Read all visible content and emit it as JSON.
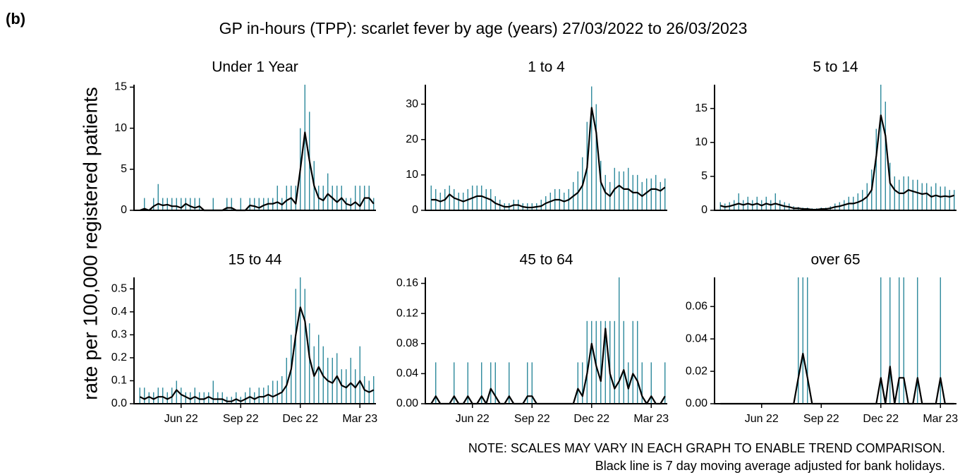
{
  "label": "(b)",
  "title": "GP in-hours (TPP): scarlet fever by age (years) 27/03/2022 to 26/03/2023",
  "ylabel": "rate per 100,000 registered patients",
  "notes": [
    "NOTE: SCALES MAY VARY IN EACH GRAPH TO ENABLE TREND COMPARISON.",
    "Black line is 7 day moving average adjusted for bank holidays."
  ],
  "chart_data": [
    {
      "type": "line",
      "title": "Under 1 Year",
      "ylim": [
        0,
        15.3
      ],
      "yticks": [
        0,
        5,
        10,
        15
      ],
      "categories": [
        null,
        null,
        null,
        null,
        null,
        null,
        null,
        null,
        null,
        null,
        null,
        null,
        null,
        null,
        null,
        null,
        null,
        null,
        null,
        null,
        null,
        null,
        null,
        null,
        null,
        null,
        null,
        null,
        null,
        null,
        null,
        null,
        null,
        null,
        null,
        null,
        null,
        null,
        null,
        null,
        null,
        null,
        null,
        null,
        null,
        null,
        null,
        null,
        null,
        null,
        null,
        null
      ],
      "series": [
        {
          "type": "bar",
          "color": "#1b7f93",
          "values": [
            0,
            1.5,
            0,
            1.5,
            3.2,
            1.5,
            1.5,
            1.5,
            1.5,
            1.5,
            1.5,
            1.5,
            1.5,
            1.5,
            0,
            0,
            1.5,
            0,
            0,
            1.5,
            1.5,
            0,
            1.5,
            0,
            1.5,
            1.5,
            1.5,
            1.5,
            1.5,
            1.5,
            3,
            1.5,
            3,
            3,
            3,
            10,
            15.3,
            12,
            6,
            3,
            3,
            4.5,
            3,
            3,
            3,
            1.5,
            1.5,
            3,
            3,
            3,
            3,
            1.5
          ]
        },
        {
          "type": "line",
          "color": "#000000",
          "values": [
            0,
            0.2,
            0,
            0.5,
            0.8,
            0.6,
            0.7,
            0.5,
            0.5,
            0.3,
            0.8,
            0.5,
            0.3,
            0.5,
            0,
            0,
            0,
            0,
            0,
            0.3,
            0.3,
            0,
            0,
            0,
            0.6,
            0.5,
            0.3,
            0.6,
            0.8,
            0.8,
            1.0,
            0.7,
            1.2,
            1.5,
            0.8,
            5,
            9.5,
            6,
            3,
            1.5,
            1.2,
            2.0,
            1.5,
            1.0,
            1.5,
            0.8,
            0.6,
            1.0,
            0.5,
            1.5,
            1.5,
            0.8
          ]
        }
      ]
    },
    {
      "type": "line",
      "title": "1 to 4",
      "ylim": [
        0,
        35.5
      ],
      "yticks": [
        0,
        10,
        20,
        30
      ],
      "categories": [
        null,
        null,
        null,
        null,
        null,
        null,
        null,
        null,
        null,
        null,
        null,
        null,
        null,
        null,
        null,
        null,
        null,
        null,
        null,
        null,
        null,
        null,
        null,
        null,
        null,
        null,
        null,
        null,
        null,
        null,
        null,
        null,
        null,
        null,
        null,
        null,
        null,
        null,
        null,
        null,
        null,
        null,
        null,
        null,
        null,
        null,
        null,
        null,
        null,
        null,
        null,
        null
      ],
      "series": [
        {
          "type": "bar",
          "color": "#1b7f93",
          "values": [
            7,
            6,
            5,
            6,
            7,
            6,
            5,
            5,
            6,
            7,
            7,
            7,
            6,
            6,
            4,
            3,
            2,
            2,
            3,
            3,
            2,
            2,
            2,
            2,
            3,
            4,
            5,
            6,
            6,
            5,
            6,
            8,
            11,
            15,
            25,
            35,
            30,
            14,
            10,
            8,
            12,
            11,
            11,
            12,
            10,
            10,
            8,
            9,
            9,
            10,
            8,
            9
          ]
        },
        {
          "type": "line",
          "color": "#000000",
          "values": [
            3,
            3,
            2.5,
            3,
            4.5,
            3.5,
            3,
            2.5,
            3,
            3.5,
            4,
            4,
            3.5,
            3,
            2,
            1.5,
            1,
            1,
            1.5,
            1.5,
            1,
            0.8,
            0.8,
            1,
            1.2,
            2,
            2.5,
            3,
            3,
            2.5,
            3,
            4,
            5,
            7,
            12,
            29,
            22,
            8,
            5,
            4,
            6,
            7,
            6,
            6,
            5,
            5,
            4,
            5,
            6,
            6,
            5.5,
            6.5
          ]
        }
      ]
    },
    {
      "type": "line",
      "title": "5 to 14",
      "ylim": [
        0,
        18.5
      ],
      "yticks": [
        0,
        5,
        10,
        15
      ],
      "categories": [
        null,
        null,
        null,
        null,
        null,
        null,
        null,
        null,
        null,
        null,
        null,
        null,
        null,
        null,
        null,
        null,
        null,
        null,
        null,
        null,
        null,
        null,
        null,
        null,
        null,
        null,
        null,
        null,
        null,
        null,
        null,
        null,
        null,
        null,
        null,
        null,
        null,
        null,
        null,
        null,
        null,
        null,
        null,
        null,
        null,
        null,
        null,
        null,
        null,
        null,
        null,
        null
      ],
      "series": [
        {
          "type": "bar",
          "color": "#1b7f93",
          "values": [
            1.2,
            1,
            1.2,
            1.5,
            2.5,
            1.5,
            2,
            1.5,
            2,
            1.5,
            2,
            1.5,
            2.5,
            1.5,
            1.2,
            1,
            0.6,
            0.5,
            0.4,
            0.4,
            0.3,
            0.3,
            0.4,
            0.4,
            0.6,
            1,
            1.2,
            1.5,
            2,
            2,
            2.5,
            3,
            4,
            6,
            12,
            18.5,
            16,
            7,
            5,
            4.5,
            5,
            5,
            4.5,
            4.5,
            4,
            4,
            3.5,
            4,
            3.5,
            3.5,
            3,
            3
          ]
        },
        {
          "type": "line",
          "color": "#000000",
          "values": [
            0.7,
            0.5,
            0.6,
            0.8,
            1,
            0.8,
            1,
            0.8,
            1,
            0.7,
            1,
            0.8,
            1,
            0.8,
            0.6,
            0.5,
            0.3,
            0.3,
            0.2,
            0.2,
            0.1,
            0.1,
            0.2,
            0.2,
            0.3,
            0.5,
            0.6,
            0.8,
            1,
            1,
            1.2,
            1.5,
            2,
            3,
            8,
            14,
            11,
            4,
            3,
            2.5,
            2.5,
            3,
            2.8,
            2.6,
            2.4,
            2.5,
            2,
            2.2,
            2,
            2.1,
            2,
            2.2
          ]
        }
      ]
    },
    {
      "type": "line",
      "title": "15 to 44",
      "ylim": [
        0,
        0.55
      ],
      "yticks": [
        {
          "value": 0,
          "label": "0.0"
        },
        0.1,
        0.2,
        0.3,
        0.4,
        0.5
      ],
      "categories": [
        null,
        null,
        null,
        null,
        null,
        null,
        null,
        null,
        null,
        "Jun 22",
        null,
        null,
        null,
        null,
        null,
        null,
        null,
        null,
        null,
        null,
        null,
        null,
        "Sep 22",
        null,
        null,
        null,
        null,
        null,
        null,
        null,
        null,
        null,
        null,
        null,
        null,
        "Dec 22",
        null,
        null,
        null,
        null,
        null,
        null,
        null,
        null,
        null,
        null,
        null,
        null,
        "Mar 23",
        null,
        null,
        null
      ],
      "series": [
        {
          "type": "bar",
          "color": "#1b7f93",
          "values": [
            0.07,
            0.07,
            0.05,
            0.05,
            0.07,
            0.07,
            0.05,
            0.07,
            0.1,
            0.07,
            0.05,
            0.05,
            0.07,
            0.05,
            0.05,
            0.05,
            0.1,
            0.05,
            0.05,
            0.03,
            0.03,
            0.05,
            0.03,
            0.05,
            0.07,
            0.05,
            0.07,
            0.07,
            0.08,
            0.1,
            0.1,
            0.12,
            0.2,
            0.3,
            0.5,
            0.55,
            0.5,
            0.35,
            0.25,
            0.3,
            0.25,
            0.2,
            0.2,
            0.22,
            0.15,
            0.15,
            0.2,
            0.15,
            0.25,
            0.12,
            0.1,
            0.12
          ]
        },
        {
          "type": "line",
          "color": "#000000",
          "values": [
            0.03,
            0.02,
            0.03,
            0.02,
            0.03,
            0.03,
            0.02,
            0.03,
            0.06,
            0.04,
            0.03,
            0.02,
            0.03,
            0.02,
            0.02,
            0.03,
            0.02,
            0.02,
            0.02,
            0.01,
            0.01,
            0.02,
            0.01,
            0.02,
            0.03,
            0.02,
            0.03,
            0.03,
            0.04,
            0.03,
            0.04,
            0.05,
            0.08,
            0.15,
            0.3,
            0.42,
            0.36,
            0.2,
            0.12,
            0.16,
            0.12,
            0.1,
            0.09,
            0.12,
            0.08,
            0.07,
            0.09,
            0.07,
            0.1,
            0.06,
            0.05,
            0.06
          ]
        }
      ]
    },
    {
      "type": "line",
      "title": "45 to 64",
      "ylim": [
        0,
        0.168
      ],
      "yticks": [
        {
          "value": 0,
          "label": "0.00"
        },
        0.04,
        0.08,
        0.12,
        0.16
      ],
      "categories": [
        null,
        null,
        null,
        null,
        null,
        null,
        null,
        null,
        null,
        "Jun 22",
        null,
        null,
        null,
        null,
        null,
        null,
        null,
        null,
        null,
        null,
        null,
        null,
        "Sep 22",
        null,
        null,
        null,
        null,
        null,
        null,
        null,
        null,
        null,
        null,
        null,
        null,
        "Dec 22",
        null,
        null,
        null,
        null,
        null,
        null,
        null,
        null,
        null,
        null,
        null,
        null,
        "Mar 23",
        null,
        null,
        null
      ],
      "series": [
        {
          "type": "bar",
          "color": "#1b7f93",
          "values": [
            0,
            0.055,
            0,
            0,
            0,
            0.055,
            0,
            0,
            0.055,
            0,
            0,
            0.055,
            0,
            0.055,
            0.055,
            0,
            0,
            0.055,
            0,
            0,
            0,
            0.055,
            0.055,
            0,
            0,
            0,
            0,
            0,
            0,
            0,
            0,
            0,
            0.055,
            0.055,
            0.11,
            0.11,
            0.11,
            0.11,
            0.11,
            0.11,
            0.11,
            0.168,
            0.11,
            0.055,
            0.11,
            0.11,
            0.055,
            0,
            0.055,
            0,
            0,
            0.055
          ]
        },
        {
          "type": "line",
          "color": "#000000",
          "values": [
            0,
            0.01,
            0,
            0,
            0,
            0.01,
            0,
            0,
            0.01,
            0,
            0,
            0.01,
            0,
            0.02,
            0.01,
            0,
            0,
            0.01,
            0,
            0,
            0,
            0.01,
            0.01,
            0,
            0,
            0,
            0,
            0,
            0,
            0,
            0,
            0,
            0.02,
            0.01,
            0.04,
            0.08,
            0.05,
            0.03,
            0.1,
            0.04,
            0.02,
            0.03,
            0.045,
            0.02,
            0.04,
            0.03,
            0.01,
            0,
            0.01,
            0,
            0,
            0.01
          ]
        }
      ]
    },
    {
      "type": "line",
      "title": "over 65",
      "ylim": [
        0,
        0.078
      ],
      "yticks": [
        {
          "value": 0,
          "label": "0.00"
        },
        0.02,
        0.04,
        0.06
      ],
      "categories": [
        null,
        null,
        null,
        null,
        null,
        null,
        null,
        null,
        null,
        "Jun 22",
        null,
        null,
        null,
        null,
        null,
        null,
        null,
        null,
        null,
        null,
        null,
        null,
        "Sep 22",
        null,
        null,
        null,
        null,
        null,
        null,
        null,
        null,
        null,
        null,
        null,
        null,
        "Dec 22",
        null,
        null,
        null,
        null,
        null,
        null,
        null,
        null,
        null,
        null,
        null,
        null,
        "Mar 23",
        null,
        null,
        null
      ],
      "series": [
        {
          "type": "bar",
          "color": "#1b7f93",
          "values": [
            0,
            0,
            0,
            0,
            0,
            0,
            0,
            0,
            0,
            0,
            0,
            0,
            0,
            0,
            0,
            0,
            0,
            0.078,
            0.078,
            0.078,
            0,
            0,
            0,
            0,
            0,
            0,
            0,
            0,
            0,
            0,
            0,
            0,
            0,
            0,
            0,
            0.078,
            0,
            0.078,
            0,
            0.078,
            0.078,
            0,
            0,
            0.078,
            0,
            0,
            0,
            0,
            0.078,
            0,
            0,
            0
          ]
        },
        {
          "type": "line",
          "color": "#000000",
          "values": [
            0,
            0,
            0,
            0,
            0,
            0,
            0,
            0,
            0,
            0,
            0,
            0,
            0,
            0,
            0,
            0,
            0,
            0.016,
            0.031,
            0.016,
            0,
            0,
            0,
            0,
            0,
            0,
            0,
            0,
            0,
            0,
            0,
            0,
            0,
            0,
            0,
            0.016,
            0,
            0.023,
            0,
            0.016,
            0.016,
            0,
            0,
            0.016,
            0,
            0,
            0,
            0,
            0.016,
            0,
            0,
            0
          ]
        }
      ]
    }
  ]
}
